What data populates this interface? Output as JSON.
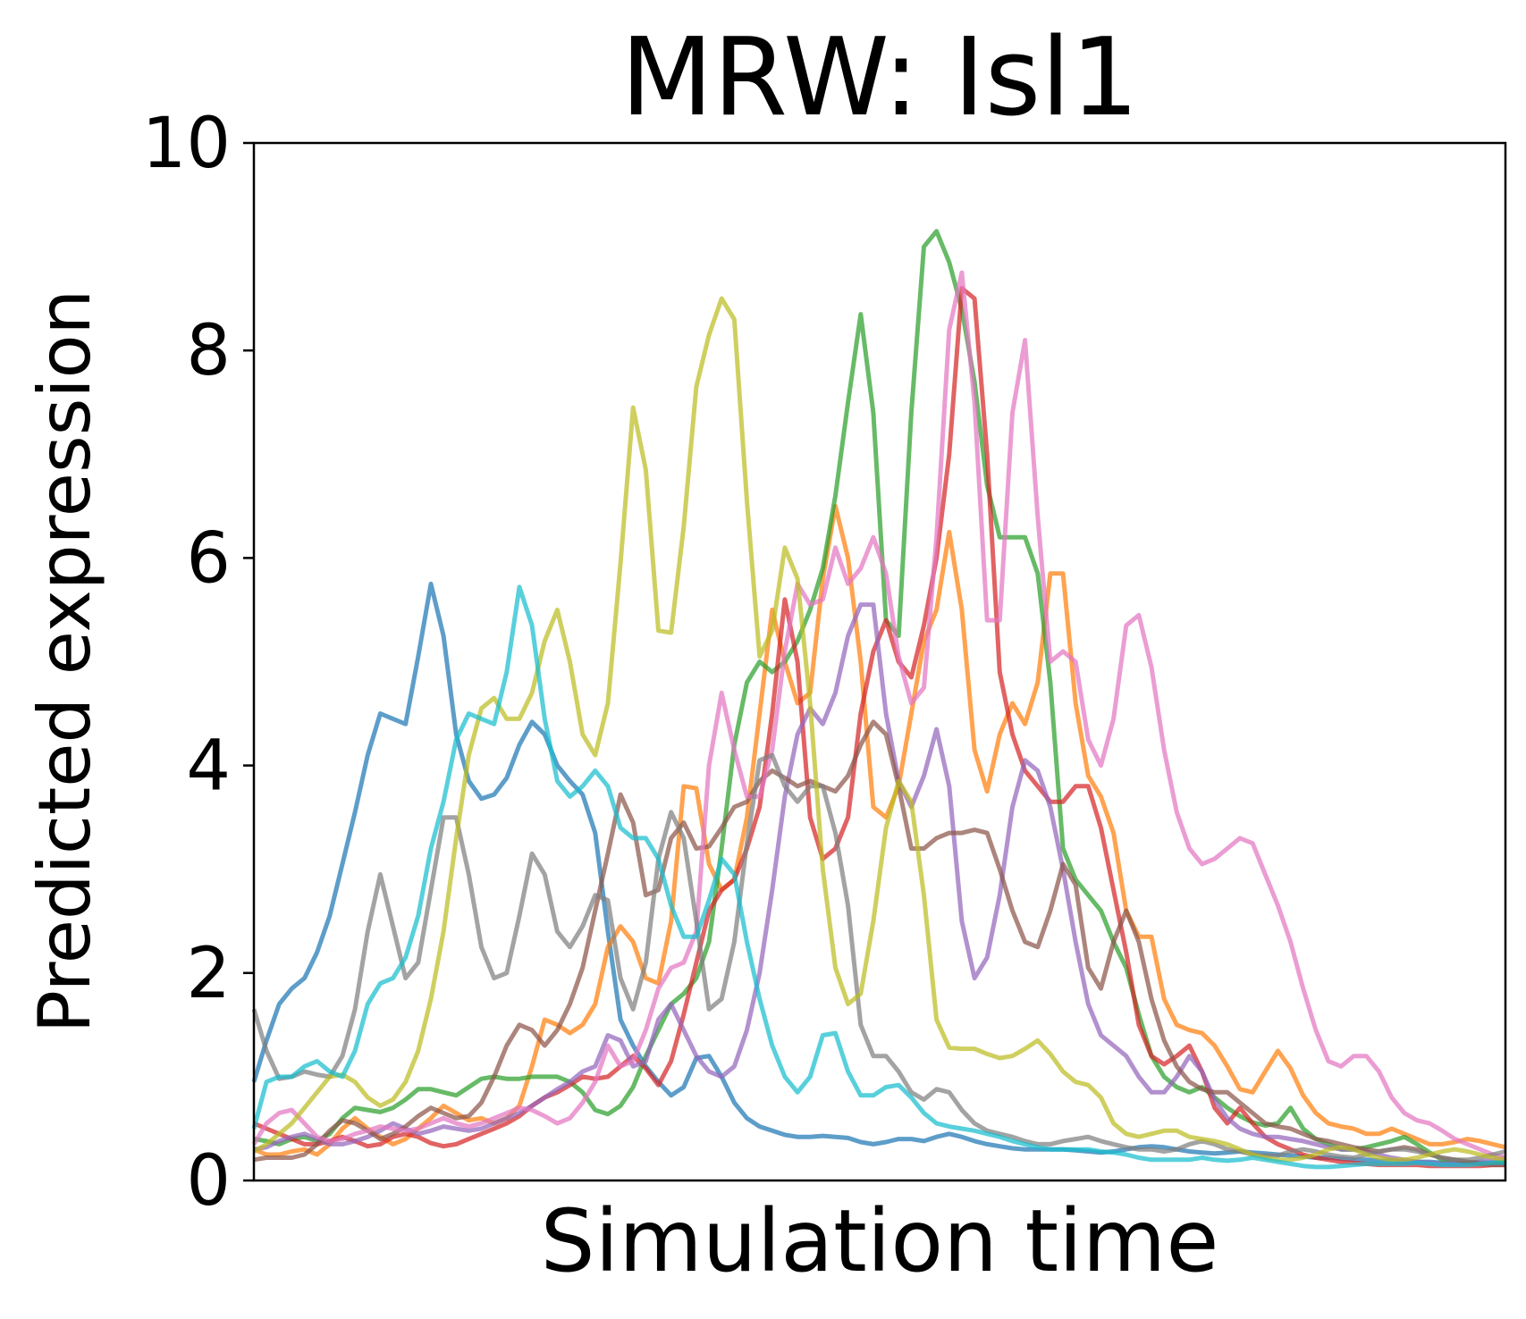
{
  "chart_data": {
    "type": "line",
    "title": "MRW: Isl1",
    "xlabel": "Simulation time",
    "ylabel": "Predicted expression",
    "ylim": [
      0,
      10
    ],
    "yticks": [
      "0",
      "2",
      "4",
      "6",
      "8",
      "10"
    ],
    "xticks": [],
    "grid": false,
    "legend": "none",
    "x_points": 100,
    "series": [
      {
        "color": "#1f77b4",
        "values": [
          0.95,
          1.35,
          1.7,
          1.85,
          1.95,
          2.2,
          2.55,
          3.05,
          3.55,
          4.1,
          4.5,
          4.45,
          4.4,
          5.05,
          5.75,
          5.25,
          4.3,
          3.85,
          3.68,
          3.72,
          3.88,
          4.2,
          4.42,
          4.3,
          4.0,
          3.85,
          3.72,
          3.35,
          2.4,
          1.55,
          1.3,
          1.1,
          0.95,
          0.82,
          0.9,
          1.18,
          1.2,
          1.0,
          0.75,
          0.6,
          0.52,
          0.48,
          0.44,
          0.42,
          0.42,
          0.43,
          0.42,
          0.41,
          0.37,
          0.35,
          0.37,
          0.4,
          0.4,
          0.38,
          0.42,
          0.45,
          0.42,
          0.38,
          0.35,
          0.33,
          0.31,
          0.3,
          0.3,
          0.3,
          0.3,
          0.29,
          0.28,
          0.27,
          0.28,
          0.3,
          0.32,
          0.33,
          0.32,
          0.3,
          0.28,
          0.27,
          0.26,
          0.27,
          0.28,
          0.27,
          0.26,
          0.25,
          0.24,
          0.23,
          0.22,
          0.22,
          0.21,
          0.2,
          0.2,
          0.19,
          0.19,
          0.18,
          0.18,
          0.18,
          0.17,
          0.17,
          0.17,
          0.17,
          0.17,
          0.18
        ]
      },
      {
        "color": "#ff7f0e",
        "values": [
          0.3,
          0.25,
          0.25,
          0.28,
          0.3,
          0.25,
          0.35,
          0.5,
          0.6,
          0.5,
          0.42,
          0.35,
          0.4,
          0.5,
          0.6,
          0.72,
          0.65,
          0.58,
          0.6,
          0.55,
          0.6,
          0.72,
          1.1,
          1.55,
          1.5,
          1.42,
          1.5,
          1.7,
          2.25,
          2.45,
          2.3,
          1.95,
          1.9,
          2.5,
          3.8,
          3.78,
          3.05,
          2.8,
          2.9,
          3.5,
          4.5,
          5.5,
          5.0,
          4.6,
          4.7,
          5.8,
          6.5,
          6.0,
          5.0,
          3.6,
          3.5,
          3.8,
          4.5,
          5.2,
          5.5,
          6.25,
          5.5,
          4.15,
          3.75,
          4.3,
          4.6,
          4.4,
          4.8,
          5.85,
          5.85,
          4.6,
          3.9,
          3.7,
          3.35,
          2.6,
          2.35,
          2.35,
          1.75,
          1.5,
          1.45,
          1.42,
          1.3,
          1.1,
          0.88,
          0.85,
          1.05,
          1.25,
          1.08,
          0.82,
          0.65,
          0.55,
          0.52,
          0.5,
          0.45,
          0.45,
          0.5,
          0.45,
          0.4,
          0.35,
          0.35,
          0.37,
          0.4,
          0.38,
          0.35,
          0.32
        ]
      },
      {
        "color": "#2ca02c",
        "values": [
          0.4,
          0.38,
          0.35,
          0.4,
          0.42,
          0.38,
          0.45,
          0.6,
          0.7,
          0.68,
          0.66,
          0.7,
          0.78,
          0.88,
          0.88,
          0.85,
          0.82,
          0.9,
          0.98,
          1.0,
          0.98,
          0.98,
          1.0,
          1.0,
          1.0,
          0.95,
          0.85,
          0.68,
          0.64,
          0.72,
          0.9,
          1.2,
          1.45,
          1.7,
          1.8,
          1.95,
          2.3,
          3.2,
          4.2,
          4.8,
          5.0,
          4.9,
          5.0,
          5.2,
          5.5,
          5.9,
          6.6,
          7.5,
          8.35,
          7.4,
          5.4,
          5.25,
          7.4,
          9.0,
          9.15,
          8.85,
          8.4,
          7.7,
          6.7,
          6.2,
          6.2,
          6.2,
          5.85,
          4.8,
          3.2,
          2.9,
          2.75,
          2.6,
          2.3,
          2.05,
          1.6,
          1.2,
          1.0,
          0.9,
          0.85,
          0.9,
          0.8,
          0.7,
          0.62,
          0.56,
          0.53,
          0.55,
          0.7,
          0.5,
          0.4,
          0.35,
          0.3,
          0.3,
          0.32,
          0.35,
          0.38,
          0.42,
          0.35,
          0.27,
          0.2,
          0.2,
          0.18,
          0.17,
          0.17,
          0.18
        ]
      },
      {
        "color": "#d62728",
        "values": [
          0.55,
          0.5,
          0.45,
          0.4,
          0.35,
          0.35,
          0.38,
          0.42,
          0.38,
          0.33,
          0.35,
          0.42,
          0.45,
          0.42,
          0.36,
          0.33,
          0.35,
          0.4,
          0.45,
          0.5,
          0.55,
          0.62,
          0.72,
          0.8,
          0.85,
          0.92,
          1.0,
          0.98,
          1.0,
          1.1,
          1.2,
          1.08,
          0.92,
          1.15,
          1.6,
          2.1,
          2.6,
          2.8,
          2.9,
          3.2,
          3.6,
          4.5,
          5.6,
          5.0,
          3.5,
          3.1,
          3.2,
          3.5,
          4.5,
          5.1,
          5.4,
          5.0,
          4.85,
          5.35,
          6.0,
          7.0,
          8.6,
          8.5,
          7.0,
          4.9,
          4.3,
          3.95,
          3.8,
          3.65,
          3.65,
          3.8,
          3.8,
          3.4,
          2.8,
          2.2,
          1.5,
          1.2,
          1.12,
          1.2,
          1.3,
          1.05,
          0.7,
          0.55,
          0.7,
          0.55,
          0.42,
          0.35,
          0.3,
          0.25,
          0.22,
          0.2,
          0.18,
          0.17,
          0.16,
          0.15,
          0.15,
          0.15,
          0.15,
          0.14,
          0.14,
          0.14,
          0.14,
          0.14,
          0.15,
          0.15
        ]
      },
      {
        "color": "#9467bd",
        "values": [
          0.3,
          0.32,
          0.38,
          0.42,
          0.45,
          0.4,
          0.35,
          0.35,
          0.38,
          0.42,
          0.48,
          0.55,
          0.5,
          0.45,
          0.48,
          0.52,
          0.5,
          0.48,
          0.5,
          0.55,
          0.6,
          0.65,
          0.72,
          0.8,
          0.88,
          0.95,
          1.05,
          1.1,
          1.4,
          1.35,
          1.1,
          1.15,
          1.55,
          1.7,
          1.45,
          1.2,
          1.05,
          1.0,
          1.1,
          1.45,
          2.0,
          2.8,
          3.7,
          4.3,
          4.55,
          4.4,
          4.7,
          5.25,
          5.55,
          5.55,
          4.5,
          3.85,
          3.6,
          3.9,
          4.35,
          3.8,
          2.5,
          1.95,
          2.15,
          2.75,
          3.6,
          4.05,
          3.95,
          3.6,
          3.0,
          2.3,
          1.7,
          1.4,
          1.3,
          1.2,
          1.0,
          0.85,
          0.85,
          1.0,
          1.2,
          1.05,
          0.78,
          0.6,
          0.5,
          0.45,
          0.42,
          0.42,
          0.4,
          0.38,
          0.35,
          0.32,
          0.3,
          0.3,
          0.28,
          0.25,
          0.22,
          0.2,
          0.18,
          0.17,
          0.16,
          0.16,
          0.17,
          0.18,
          0.2,
          0.22
        ]
      },
      {
        "color": "#8c564b",
        "values": [
          0.2,
          0.22,
          0.22,
          0.22,
          0.25,
          0.35,
          0.48,
          0.58,
          0.55,
          0.48,
          0.4,
          0.45,
          0.52,
          0.62,
          0.7,
          0.65,
          0.6,
          0.62,
          0.75,
          1.0,
          1.3,
          1.5,
          1.45,
          1.3,
          1.45,
          1.7,
          2.05,
          2.6,
          3.15,
          3.72,
          3.45,
          2.75,
          2.8,
          3.3,
          3.45,
          3.2,
          3.22,
          3.4,
          3.6,
          3.65,
          3.85,
          3.95,
          3.88,
          3.8,
          3.85,
          3.8,
          3.75,
          3.9,
          4.2,
          4.42,
          4.3,
          3.8,
          3.2,
          3.2,
          3.3,
          3.35,
          3.35,
          3.38,
          3.35,
          3.0,
          2.6,
          2.3,
          2.25,
          2.6,
          3.05,
          2.85,
          2.05,
          1.85,
          2.3,
          2.6,
          2.3,
          1.75,
          1.35,
          1.1,
          0.95,
          0.88,
          0.85,
          0.85,
          0.75,
          0.65,
          0.55,
          0.52,
          0.5,
          0.45,
          0.4,
          0.38,
          0.35,
          0.32,
          0.3,
          0.28,
          0.3,
          0.32,
          0.3,
          0.25,
          0.22,
          0.2,
          0.18,
          0.16,
          0.15,
          0.15
        ]
      },
      {
        "color": "#e377c2",
        "values": [
          0.35,
          0.55,
          0.65,
          0.68,
          0.55,
          0.42,
          0.38,
          0.4,
          0.45,
          0.48,
          0.52,
          0.5,
          0.48,
          0.5,
          0.55,
          0.6,
          0.55,
          0.52,
          0.55,
          0.6,
          0.65,
          0.7,
          0.68,
          0.62,
          0.55,
          0.6,
          0.75,
          0.95,
          1.3,
          1.1,
          1.15,
          1.45,
          1.85,
          2.05,
          2.1,
          2.4,
          4.0,
          4.7,
          4.15,
          3.7,
          3.7,
          4.15,
          5.1,
          5.75,
          5.55,
          5.6,
          6.1,
          5.75,
          5.9,
          6.2,
          5.85,
          5.05,
          4.6,
          4.75,
          6.2,
          8.2,
          8.75,
          7.5,
          5.4,
          5.4,
          7.4,
          8.1,
          6.4,
          5.0,
          5.1,
          5.0,
          4.25,
          4.0,
          4.45,
          5.35,
          5.45,
          4.95,
          4.15,
          3.55,
          3.2,
          3.05,
          3.1,
          3.2,
          3.3,
          3.25,
          2.95,
          2.65,
          2.3,
          1.85,
          1.45,
          1.15,
          1.1,
          1.2,
          1.2,
          1.05,
          0.8,
          0.65,
          0.58,
          0.55,
          0.48,
          0.4,
          0.35,
          0.3,
          0.25,
          0.22
        ]
      },
      {
        "color": "#7f7f7f",
        "values": [
          1.65,
          1.25,
          0.98,
          1.0,
          1.05,
          1.02,
          1.0,
          1.2,
          1.65,
          2.4,
          2.95,
          2.45,
          1.95,
          2.1,
          2.8,
          3.5,
          3.5,
          2.95,
          2.25,
          1.95,
          2.0,
          2.55,
          3.15,
          2.95,
          2.4,
          2.25,
          2.45,
          2.75,
          2.7,
          1.95,
          1.65,
          2.1,
          3.1,
          3.55,
          3.3,
          2.5,
          1.65,
          1.75,
          2.3,
          3.25,
          4.05,
          4.1,
          3.8,
          3.65,
          3.8,
          3.8,
          3.35,
          2.65,
          1.5,
          1.2,
          1.2,
          1.05,
          0.85,
          0.78,
          0.88,
          0.85,
          0.68,
          0.55,
          0.48,
          0.45,
          0.42,
          0.38,
          0.35,
          0.35,
          0.38,
          0.4,
          0.42,
          0.38,
          0.35,
          0.32,
          0.3,
          0.3,
          0.28,
          0.3,
          0.35,
          0.38,
          0.35,
          0.3,
          0.28,
          0.25,
          0.24,
          0.24,
          0.28,
          0.3,
          0.28,
          0.25,
          0.23,
          0.22,
          0.25,
          0.28,
          0.3,
          0.3,
          0.28,
          0.25,
          0.22,
          0.2,
          0.2,
          0.22,
          0.25,
          0.28
        ]
      },
      {
        "color": "#bcbd22",
        "values": [
          0.28,
          0.35,
          0.45,
          0.55,
          0.7,
          0.85,
          1.0,
          1.02,
          0.95,
          0.8,
          0.72,
          0.78,
          0.95,
          1.25,
          1.75,
          2.4,
          3.3,
          4.1,
          4.55,
          4.65,
          4.45,
          4.45,
          4.7,
          5.2,
          5.5,
          5.0,
          4.3,
          4.1,
          4.6,
          5.95,
          7.45,
          6.85,
          5.3,
          5.28,
          6.3,
          7.65,
          8.15,
          8.5,
          8.3,
          6.55,
          5.05,
          5.3,
          6.1,
          5.8,
          4.6,
          3.0,
          2.05,
          1.7,
          1.8,
          2.5,
          3.4,
          3.85,
          3.65,
          2.75,
          1.55,
          1.28,
          1.27,
          1.27,
          1.22,
          1.18,
          1.2,
          1.27,
          1.35,
          1.22,
          1.05,
          0.95,
          0.92,
          0.8,
          0.55,
          0.45,
          0.42,
          0.45,
          0.48,
          0.48,
          0.42,
          0.4,
          0.38,
          0.35,
          0.3,
          0.25,
          0.22,
          0.2,
          0.2,
          0.22,
          0.25,
          0.3,
          0.32,
          0.3,
          0.25,
          0.22,
          0.2,
          0.2,
          0.22,
          0.25,
          0.28,
          0.3,
          0.28,
          0.25,
          0.22,
          0.2
        ]
      },
      {
        "color": "#17becf",
        "values": [
          0.5,
          0.95,
          1.0,
          1.0,
          1.1,
          1.15,
          1.05,
          1.0,
          1.25,
          1.7,
          1.9,
          1.95,
          2.15,
          2.55,
          3.2,
          3.65,
          4.25,
          4.5,
          4.45,
          4.4,
          4.9,
          5.72,
          5.35,
          4.45,
          3.85,
          3.7,
          3.8,
          3.95,
          3.8,
          3.4,
          3.3,
          3.3,
          3.1,
          2.65,
          2.35,
          2.35,
          2.7,
          3.1,
          2.95,
          2.3,
          1.75,
          1.3,
          1.0,
          0.85,
          1.0,
          1.4,
          1.42,
          1.05,
          0.82,
          0.82,
          0.9,
          0.92,
          0.8,
          0.65,
          0.55,
          0.52,
          0.5,
          0.48,
          0.45,
          0.42,
          0.38,
          0.35,
          0.32,
          0.3,
          0.3,
          0.3,
          0.3,
          0.28,
          0.27,
          0.25,
          0.22,
          0.2,
          0.2,
          0.2,
          0.2,
          0.22,
          0.2,
          0.19,
          0.2,
          0.22,
          0.2,
          0.18,
          0.16,
          0.14,
          0.13,
          0.13,
          0.14,
          0.15,
          0.16,
          0.16,
          0.16,
          0.16,
          0.17,
          0.16,
          0.15,
          0.15,
          0.15,
          0.16,
          0.17,
          0.17
        ]
      }
    ]
  }
}
